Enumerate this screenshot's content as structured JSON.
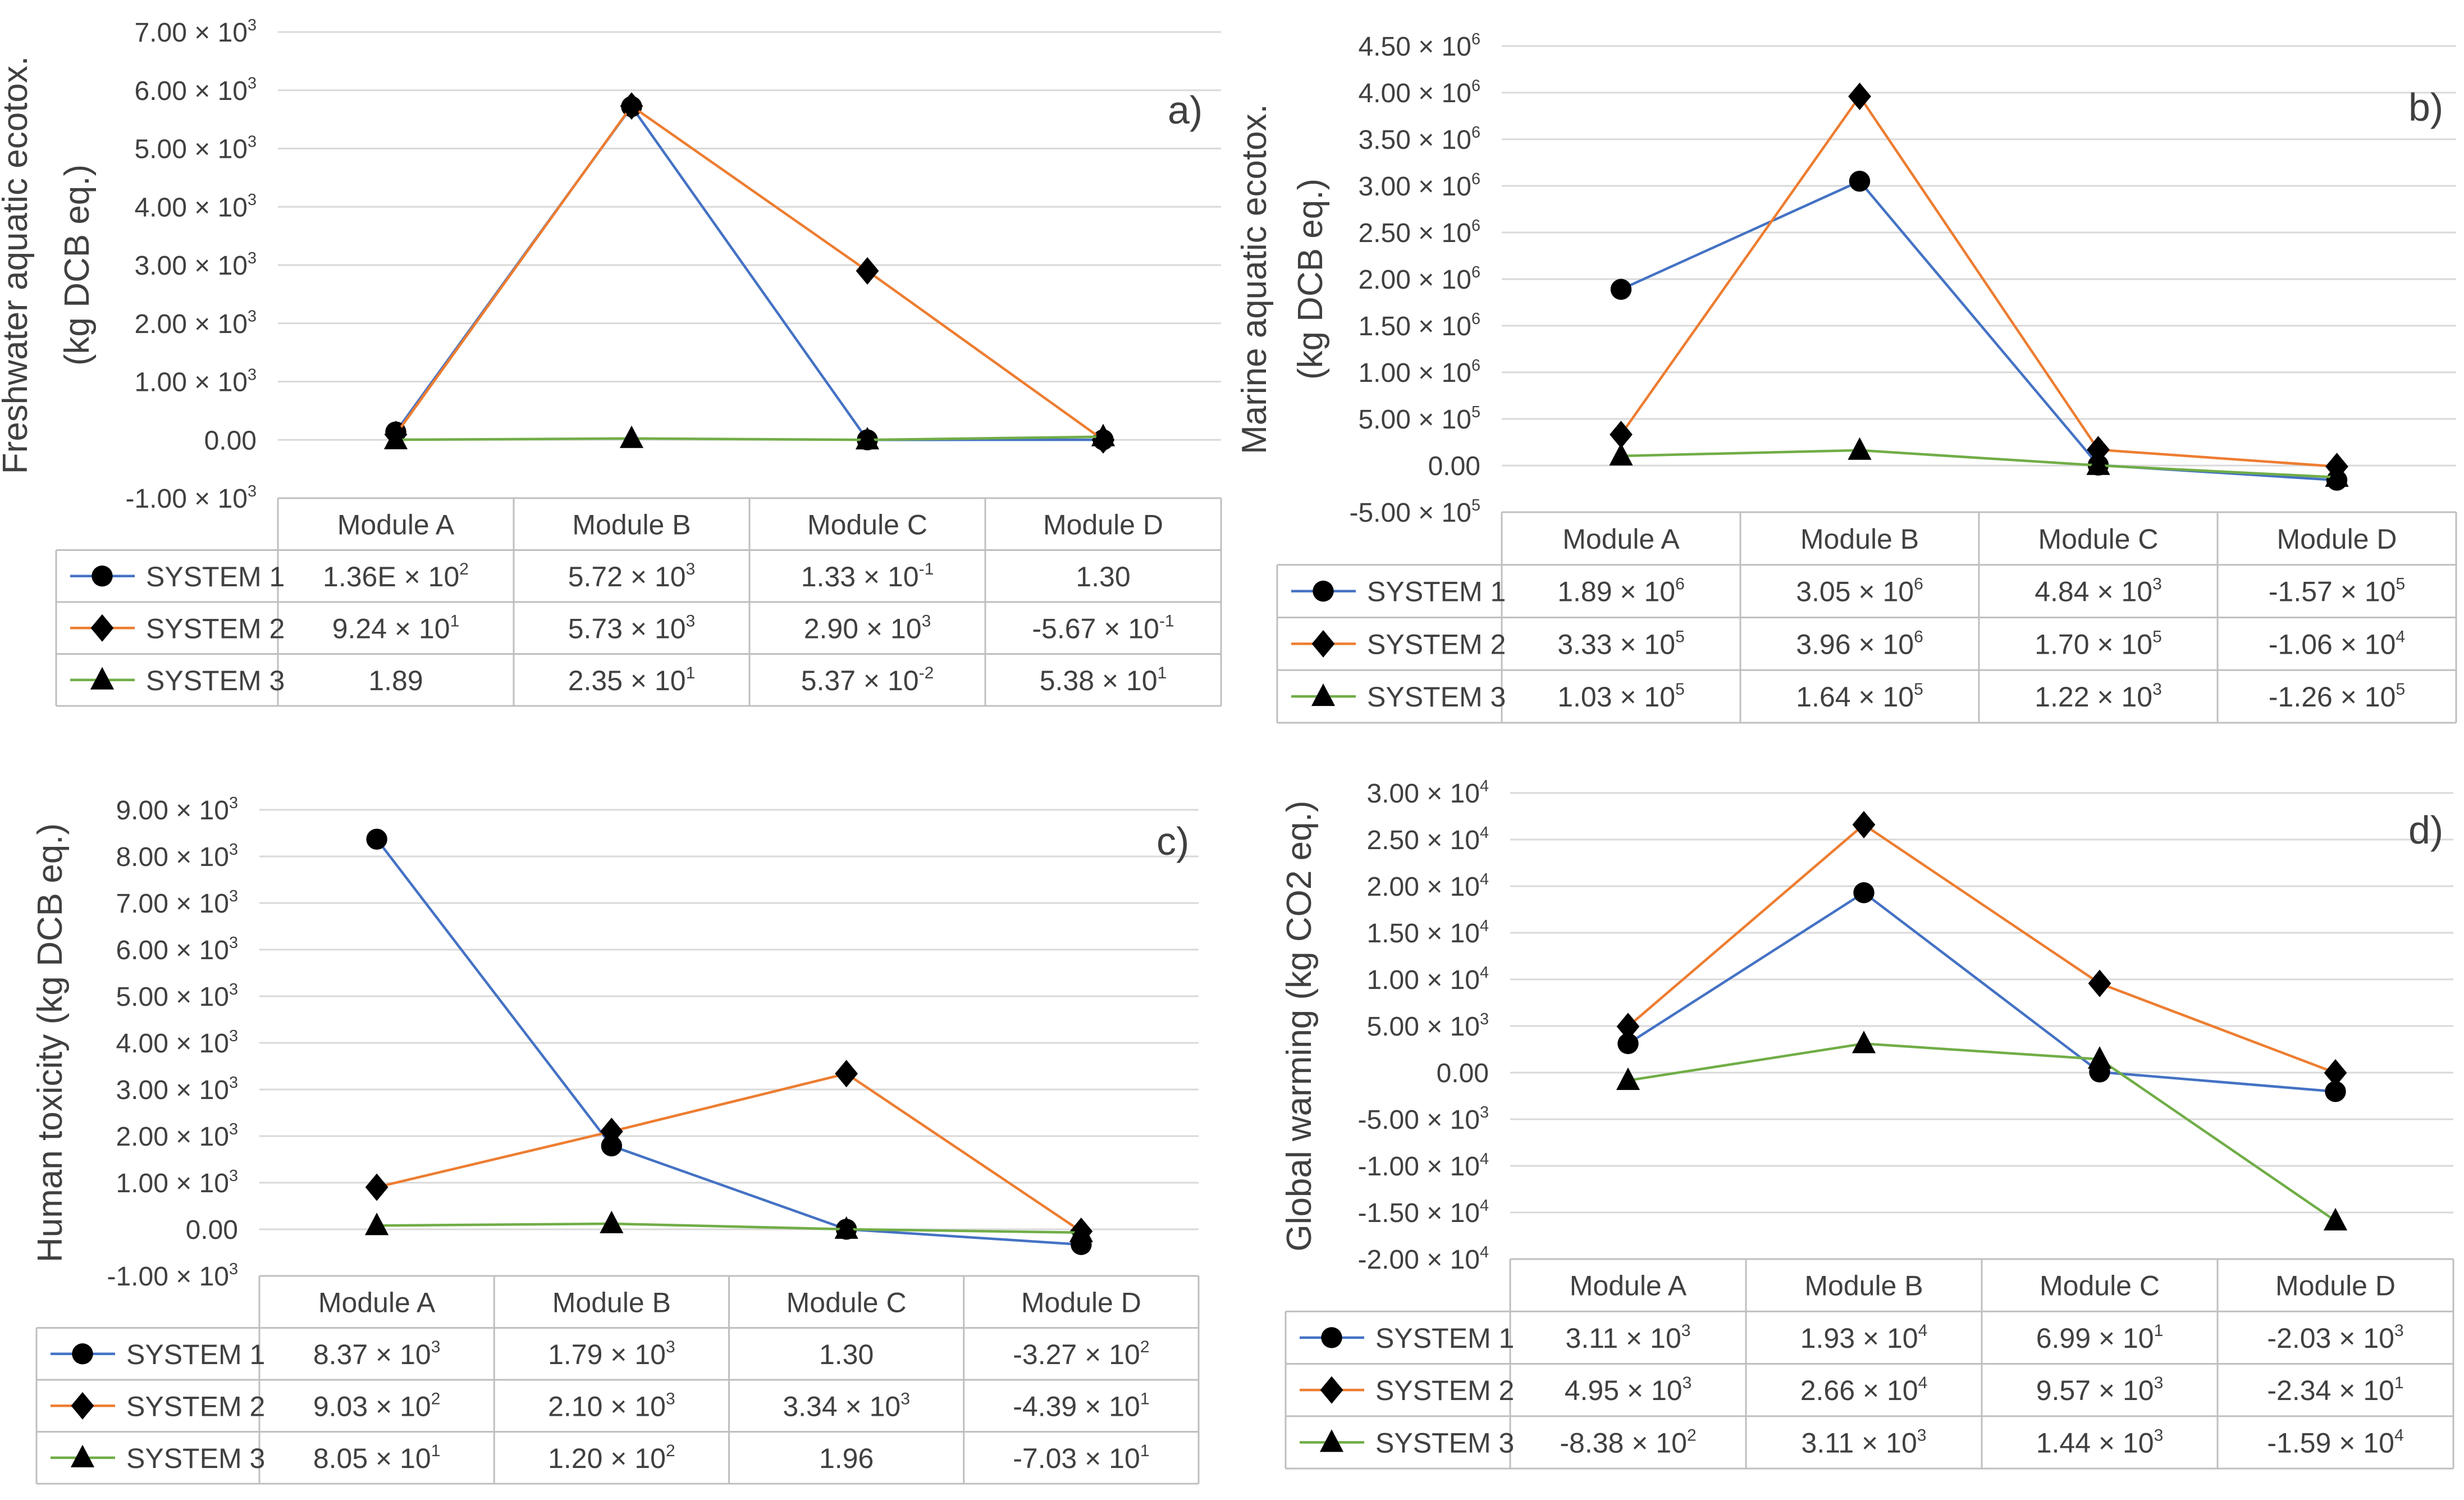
{
  "chart_data": [
    {
      "type": "line",
      "panel_label": "a)",
      "ylabel_lines": [
        "Freshwater aquatic ecotox.",
        "(kg DCB eq.)"
      ],
      "categories": [
        "Module A",
        "Module B",
        "Module C",
        "Module D"
      ],
      "ylim": [
        -1000,
        7000
      ],
      "yticks": [
        -1000,
        0,
        1000,
        2000,
        3000,
        4000,
        5000,
        6000,
        7000
      ],
      "ytick_labels": [
        {
          "m": "-1.00",
          "e": "3"
        },
        {
          "m": "0.00",
          "e": ""
        },
        {
          "m": "1.00",
          "e": "3"
        },
        {
          "m": "2.00",
          "e": "3"
        },
        {
          "m": "3.00",
          "e": "3"
        },
        {
          "m": "4.00",
          "e": "3"
        },
        {
          "m": "5.00",
          "e": "3"
        },
        {
          "m": "6.00",
          "e": "3"
        },
        {
          "m": "7.00",
          "e": "3"
        }
      ],
      "series": [
        {
          "name": "SYSTEM 1",
          "color": "#4472C4",
          "marker": "circle",
          "values": [
            136,
            5720,
            0.133,
            1.3
          ],
          "labels": [
            {
              "m": "1.36E",
              "e": "2"
            },
            {
              "m": "5.72",
              "e": "3"
            },
            {
              "m": "1.33",
              "e": "-1"
            },
            {
              "m": "1.30",
              "e": ""
            }
          ]
        },
        {
          "name": "SYSTEM 2",
          "color": "#ED7D31",
          "marker": "diamond",
          "values": [
            92.4,
            5730,
            2900,
            -0.567
          ],
          "labels": [
            {
              "m": "9.24",
              "e": "1"
            },
            {
              "m": "5.73",
              "e": "3"
            },
            {
              "m": "2.90",
              "e": "3"
            },
            {
              "m": "-5.67",
              "e": "-1"
            }
          ]
        },
        {
          "name": "SYSTEM 3",
          "color": "#70AD47",
          "marker": "triangle",
          "values": [
            1.89,
            23.5,
            0.0537,
            53.8
          ],
          "labels": [
            {
              "m": "1.89",
              "e": ""
            },
            {
              "m": "2.35",
              "e": "1"
            },
            {
              "m": "5.37",
              "e": "-2"
            },
            {
              "m": "5.38",
              "e": "1"
            }
          ]
        }
      ]
    },
    {
      "type": "line",
      "panel_label": "b)",
      "ylabel_lines": [
        "Marine aquatic ecotox.",
        "(kg DCB eq.)"
      ],
      "categories": [
        "Module A",
        "Module B",
        "Module C",
        "Module D"
      ],
      "ylim": [
        -500000,
        4500000
      ],
      "yticks": [
        -500000,
        0,
        500000,
        1000000,
        1500000,
        2000000,
        2500000,
        3000000,
        3500000,
        4000000,
        4500000
      ],
      "ytick_labels": [
        {
          "m": "-5.00",
          "e": "5"
        },
        {
          "m": "0.00",
          "e": ""
        },
        {
          "m": "5.00",
          "e": "5"
        },
        {
          "m": "1.00",
          "e": "6"
        },
        {
          "m": "1.50",
          "e": "6"
        },
        {
          "m": "2.00",
          "e": "6"
        },
        {
          "m": "2.50",
          "e": "6"
        },
        {
          "m": "3.00",
          "e": "6"
        },
        {
          "m": "3.50",
          "e": "6"
        },
        {
          "m": "4.00",
          "e": "6"
        },
        {
          "m": "4.50",
          "e": "6"
        }
      ],
      "series": [
        {
          "name": "SYSTEM 1",
          "color": "#4472C4",
          "marker": "circle",
          "values": [
            1890000,
            3050000,
            4840,
            -157000
          ],
          "labels": [
            {
              "m": "1.89",
              "e": "6"
            },
            {
              "m": "3.05",
              "e": "6"
            },
            {
              "m": "4.84",
              "e": "3"
            },
            {
              "m": "-1.57",
              "e": "5"
            }
          ]
        },
        {
          "name": "SYSTEM 2",
          "color": "#ED7D31",
          "marker": "diamond",
          "values": [
            333000,
            3960000,
            170000,
            -10600
          ],
          "labels": [
            {
              "m": "3.33",
              "e": "5"
            },
            {
              "m": "3.96",
              "e": "6"
            },
            {
              "m": "1.70",
              "e": "5"
            },
            {
              "m": "-1.06",
              "e": "4"
            }
          ]
        },
        {
          "name": "SYSTEM 3",
          "color": "#70AD47",
          "marker": "triangle",
          "values": [
            103000,
            164000,
            1220,
            -126000
          ],
          "labels": [
            {
              "m": "1.03",
              "e": "5"
            },
            {
              "m": "1.64",
              "e": "5"
            },
            {
              "m": "1.22",
              "e": "3"
            },
            {
              "m": "-1.26",
              "e": "5"
            }
          ]
        }
      ]
    },
    {
      "type": "line",
      "panel_label": "c)",
      "ylabel_lines": [
        "Human toxicity (kg DCB eq.)"
      ],
      "categories": [
        "Module A",
        "Module B",
        "Module C",
        "Module D"
      ],
      "ylim": [
        -1000,
        9000
      ],
      "yticks": [
        -1000,
        0,
        1000,
        2000,
        3000,
        4000,
        5000,
        6000,
        7000,
        8000,
        9000
      ],
      "ytick_labels": [
        {
          "m": "-1.00",
          "e": "3"
        },
        {
          "m": "0.00",
          "e": ""
        },
        {
          "m": "1.00",
          "e": "3"
        },
        {
          "m": "2.00",
          "e": "3"
        },
        {
          "m": "3.00",
          "e": "3"
        },
        {
          "m": "4.00",
          "e": "3"
        },
        {
          "m": "5.00",
          "e": "3"
        },
        {
          "m": "6.00",
          "e": "3"
        },
        {
          "m": "7.00",
          "e": "3"
        },
        {
          "m": "8.00",
          "e": "3"
        },
        {
          "m": "9.00",
          "e": "3"
        }
      ],
      "series": [
        {
          "name": "SYSTEM 1",
          "color": "#4472C4",
          "marker": "circle",
          "values": [
            8370,
            1790,
            1.3,
            -327
          ],
          "labels": [
            {
              "m": "8.37",
              "e": "3"
            },
            {
              "m": "1.79",
              "e": "3"
            },
            {
              "m": "1.30",
              "e": ""
            },
            {
              "m": "-3.27",
              "e": "2"
            }
          ]
        },
        {
          "name": "SYSTEM 2",
          "color": "#ED7D31",
          "marker": "diamond",
          "values": [
            903,
            2100,
            3340,
            -43.9
          ],
          "labels": [
            {
              "m": "9.03",
              "e": "2"
            },
            {
              "m": "2.10",
              "e": "3"
            },
            {
              "m": "3.34",
              "e": "3"
            },
            {
              "m": "-4.39",
              "e": "1"
            }
          ]
        },
        {
          "name": "SYSTEM 3",
          "color": "#70AD47",
          "marker": "triangle",
          "values": [
            80.5,
            120,
            1.96,
            -70.3
          ],
          "labels": [
            {
              "m": "8.05",
              "e": "1"
            },
            {
              "m": "1.20",
              "e": "2"
            },
            {
              "m": "1.96",
              "e": ""
            },
            {
              "m": "-7.03",
              "e": "1"
            }
          ]
        }
      ]
    },
    {
      "type": "line",
      "panel_label": "d)",
      "ylabel_lines": [
        "Global warming (kg CO2 eq.)"
      ],
      "categories": [
        "Module A",
        "Module B",
        "Module C",
        "Module D"
      ],
      "ylim": [
        -20000,
        30000
      ],
      "yticks": [
        -20000,
        -15000,
        -10000,
        -5000,
        0,
        5000,
        10000,
        15000,
        20000,
        25000,
        30000
      ],
      "ytick_labels": [
        {
          "m": "-2.00",
          "e": "4"
        },
        {
          "m": "-1.50",
          "e": "4"
        },
        {
          "m": "-1.00",
          "e": "4"
        },
        {
          "m": "-5.00",
          "e": "3"
        },
        {
          "m": "0.00",
          "e": ""
        },
        {
          "m": "5.00",
          "e": "3"
        },
        {
          "m": "1.00",
          "e": "4"
        },
        {
          "m": "1.50",
          "e": "4"
        },
        {
          "m": "2.00",
          "e": "4"
        },
        {
          "m": "2.50",
          "e": "4"
        },
        {
          "m": "3.00",
          "e": "4"
        }
      ],
      "series": [
        {
          "name": "SYSTEM 1",
          "color": "#4472C4",
          "marker": "circle",
          "values": [
            3110,
            19300,
            69.9,
            -2030
          ],
          "labels": [
            {
              "m": "3.11",
              "e": "3"
            },
            {
              "m": "1.93",
              "e": "4"
            },
            {
              "m": "6.99",
              "e": "1"
            },
            {
              "m": "-2.03",
              "e": "3"
            }
          ]
        },
        {
          "name": "SYSTEM 2",
          "color": "#ED7D31",
          "marker": "diamond",
          "values": [
            4950,
            26600,
            9570,
            -23.4
          ],
          "labels": [
            {
              "m": "4.95",
              "e": "3"
            },
            {
              "m": "2.66",
              "e": "4"
            },
            {
              "m": "9.57",
              "e": "3"
            },
            {
              "m": "-2.34",
              "e": "1"
            }
          ]
        },
        {
          "name": "SYSTEM 3",
          "color": "#70AD47",
          "marker": "triangle",
          "values": [
            -838,
            3110,
            1440,
            -15900
          ],
          "labels": [
            {
              "m": "-8.38",
              "e": "2"
            },
            {
              "m": "3.11",
              "e": "3"
            },
            {
              "m": "1.44",
              "e": "3"
            },
            {
              "m": "-1.59",
              "e": "4"
            }
          ]
        }
      ]
    }
  ]
}
